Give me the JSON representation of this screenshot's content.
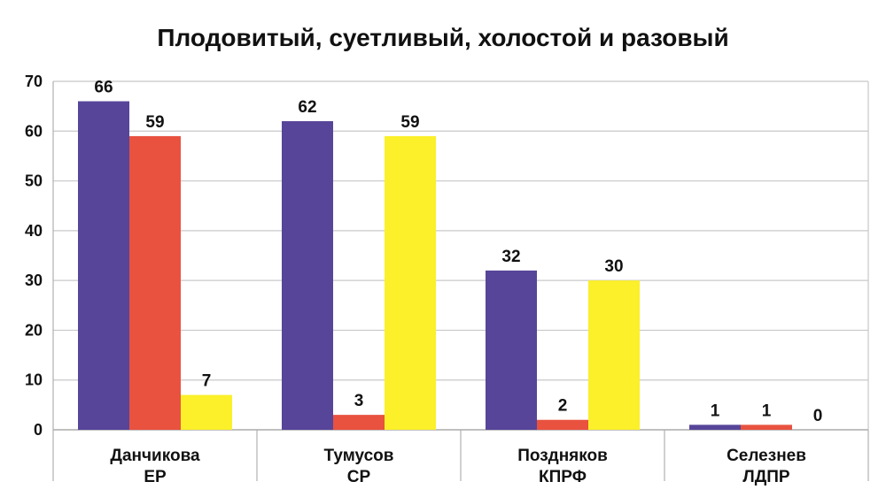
{
  "chart_data": {
    "type": "bar",
    "title": "Плодовитый, суетливый, холостой и разовый",
    "xlabel": "",
    "ylabel": "",
    "ylim": [
      0,
      70
    ],
    "y_ticks": [
      0,
      10,
      20,
      30,
      40,
      50,
      60,
      70
    ],
    "grid": true,
    "legend": "none",
    "categories": [
      [
        "Данчикова",
        "ЕР"
      ],
      [
        "Тумусов",
        "СР"
      ],
      [
        "Поздняков",
        "КПРФ"
      ],
      [
        "Селезнев",
        "ЛДПР"
      ]
    ],
    "series": [
      {
        "color": "#574599",
        "values": [
          66,
          62,
          32,
          1
        ]
      },
      {
        "color": "#e8523f",
        "values": [
          59,
          3,
          2,
          1
        ]
      },
      {
        "color": "#fbf02a",
        "values": [
          7,
          59,
          30,
          0
        ]
      }
    ]
  }
}
